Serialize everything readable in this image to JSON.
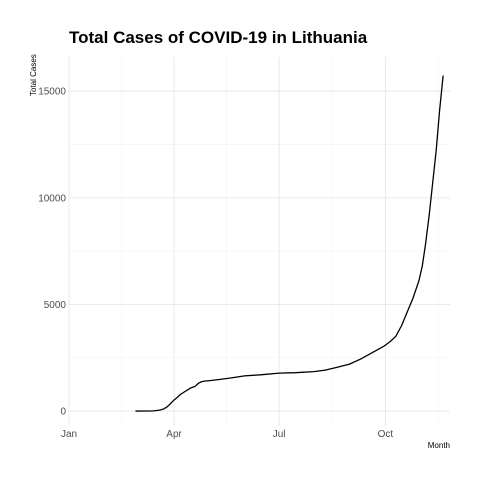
{
  "chart_data": {
    "type": "line",
    "title": "Total Cases of COVID-19 in Lithuania",
    "xlabel": "Month",
    "ylabel": "Total Cases",
    "grid": true,
    "legend": "none",
    "xlim": [
      "2020-01-01",
      "2020-11-26"
    ],
    "ylim": [
      -700,
      16600
    ],
    "x_ticks": [
      {
        "date": "2020-01-01",
        "label": "Jan"
      },
      {
        "date": "2020-04-01",
        "label": "Apr"
      },
      {
        "date": "2020-07-01",
        "label": "Jul"
      },
      {
        "date": "2020-10-01",
        "label": "Oct"
      }
    ],
    "y_ticks": [
      0,
      5000,
      10000,
      15000
    ],
    "series": [
      {
        "name": "",
        "x": [
          "2020-02-28",
          "2020-03-11",
          "2020-03-14",
          "2020-03-17",
          "2020-03-20",
          "2020-03-23",
          "2020-03-26",
          "2020-03-29",
          "2020-04-01",
          "2020-04-04",
          "2020-04-07",
          "2020-04-10",
          "2020-04-13",
          "2020-04-16",
          "2020-04-19",
          "2020-04-22",
          "2020-04-25",
          "2020-04-28",
          "2020-05-01",
          "2020-05-10",
          "2020-05-20",
          "2020-06-01",
          "2020-06-15",
          "2020-07-01",
          "2020-07-15",
          "2020-07-31",
          "2020-08-10",
          "2020-08-20",
          "2020-08-31",
          "2020-09-10",
          "2020-09-20",
          "2020-09-30",
          "2020-10-05",
          "2020-10-10",
          "2020-10-15",
          "2020-10-20",
          "2020-10-25",
          "2020-10-30",
          "2020-11-02",
          "2020-11-05",
          "2020-11-08",
          "2020-11-11",
          "2020-11-14",
          "2020-11-17",
          "2020-11-20"
        ],
        "values": [
          1,
          3,
          8,
          25,
          50,
          100,
          200,
          350,
          520,
          650,
          800,
          900,
          1000,
          1100,
          1150,
          1300,
          1380,
          1410,
          1420,
          1480,
          1550,
          1650,
          1700,
          1780,
          1800,
          1850,
          1920,
          2050,
          2200,
          2450,
          2750,
          3050,
          3250,
          3500,
          4000,
          4650,
          5300,
          6100,
          6800,
          7900,
          9200,
          10700,
          12200,
          14100,
          15700
        ]
      }
    ]
  }
}
